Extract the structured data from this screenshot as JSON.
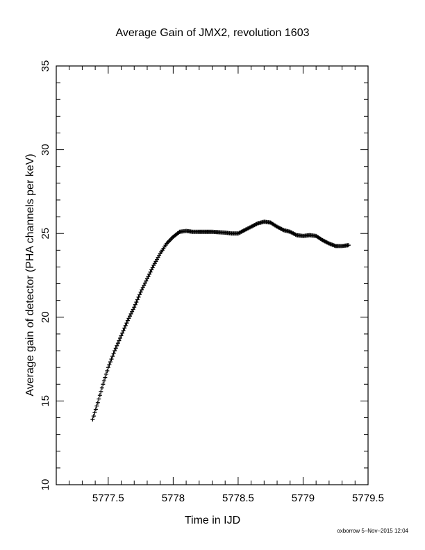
{
  "chart_data": {
    "type": "scatter",
    "title": "Average Gain of JMX2, revolution 1603",
    "xlabel": "Time in IJD",
    "ylabel": "Average gain of detector (PHA channels per keV)",
    "xlim": [
      5777.1,
      5779.5
    ],
    "ylim": [
      10,
      35
    ],
    "xticks": [
      "5777.5",
      "5778",
      "5778.5",
      "5779",
      "5779.5"
    ],
    "yticks": [
      "10",
      "15",
      "20",
      "25",
      "30",
      "35"
    ],
    "grid": false,
    "marker": "plus",
    "series": [
      {
        "x": [
          5777.38,
          5777.42,
          5777.46,
          5777.5,
          5777.55,
          5777.6,
          5777.65,
          5777.7,
          5777.75,
          5777.8,
          5777.85,
          5777.9,
          5777.95,
          5778.0,
          5778.05,
          5778.1,
          5778.15,
          5778.2,
          5778.3,
          5778.4,
          5778.45,
          5778.5,
          5778.55,
          5778.6,
          5778.65,
          5778.7,
          5778.75,
          5778.8,
          5778.85,
          5778.9,
          5778.95,
          5779.0,
          5779.05,
          5779.1,
          5779.15,
          5779.2,
          5779.25,
          5779.3,
          5779.35
        ],
        "y": [
          13.9,
          14.9,
          16.0,
          17.0,
          18.0,
          18.9,
          19.8,
          20.6,
          21.5,
          22.3,
          23.1,
          23.8,
          24.4,
          24.8,
          25.1,
          25.15,
          25.1,
          25.1,
          25.1,
          25.05,
          25.0,
          25.0,
          25.2,
          25.4,
          25.6,
          25.7,
          25.65,
          25.4,
          25.2,
          25.1,
          24.9,
          24.85,
          24.9,
          24.85,
          24.6,
          24.4,
          24.25,
          24.25,
          24.3
        ]
      }
    ]
  },
  "footer": "oxborrow  5–Nov–2015 12:04"
}
